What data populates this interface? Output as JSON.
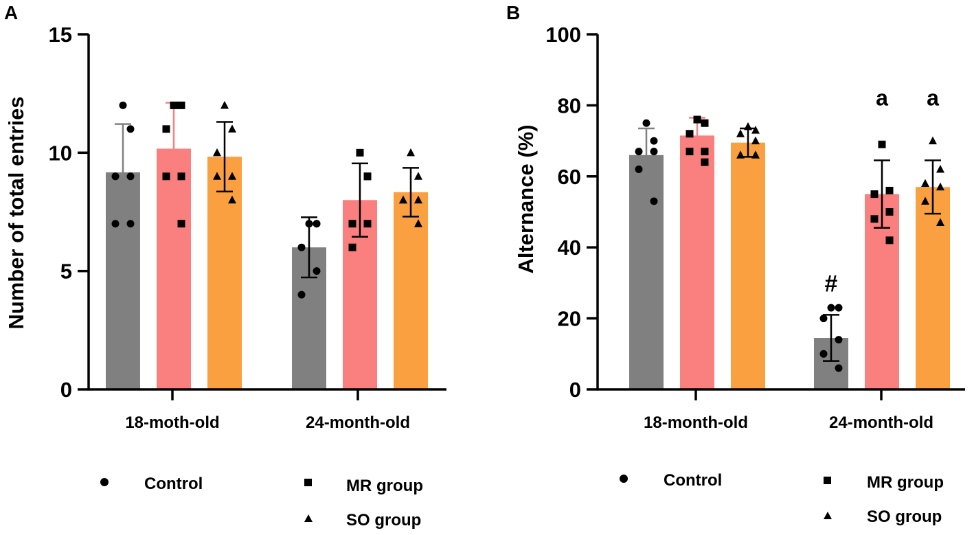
{
  "colors": {
    "control": "#808080",
    "mr": "#fa8080",
    "so": "#fba040",
    "axis": "#000000"
  },
  "chart_data": [
    {
      "panel": "A",
      "type": "bar",
      "ylabel": "Number of total entries",
      "ylim": [
        0,
        15
      ],
      "yticks": [
        0,
        5,
        10,
        15
      ],
      "categories": [
        "18-moth-old",
        "24-month-old"
      ],
      "series": [
        {
          "name": "Control",
          "marker": "circle",
          "color_key": "control",
          "means": [
            9.17,
            6.0
          ],
          "sd": [
            2.04,
            1.27
          ],
          "points": [
            [
              12,
              11,
              9,
              9,
              7,
              7
            ],
            [
              7,
              7,
              6,
              5,
              4,
              7
            ]
          ]
        },
        {
          "name": "MR group",
          "marker": "square",
          "color_key": "mr",
          "means": [
            10.17,
            8.0
          ],
          "sd": [
            1.94,
            1.55
          ],
          "points": [
            [
              12,
              12,
              11,
              9,
              9,
              7
            ],
            [
              10,
              9,
              7,
              7,
              6,
              9
            ]
          ]
        },
        {
          "name": "SO group",
          "marker": "triangle",
          "color_key": "so",
          "means": [
            9.83,
            8.33
          ],
          "sd": [
            1.47,
            1.03
          ],
          "points": [
            [
              12,
              11,
              10,
              9,
              9,
              8
            ],
            [
              10,
              9,
              8,
              8,
              8,
              7
            ]
          ]
        }
      ],
      "annotations": [],
      "legend": {
        "items": [
          "Control",
          "MR group",
          "SO group"
        ],
        "position": "bottom"
      }
    },
    {
      "panel": "B",
      "type": "bar",
      "ylabel": "Alternance (%)",
      "ylim": [
        0,
        100
      ],
      "yticks": [
        0,
        20,
        40,
        60,
        80,
        100
      ],
      "categories": [
        "18-month-old",
        "24-month-old"
      ],
      "series": [
        {
          "name": "Control",
          "marker": "circle",
          "color_key": "control",
          "means": [
            66,
            14.5
          ],
          "sd": [
            7.5,
            6.5
          ],
          "points": [
            [
              75,
              70,
              67,
              67,
              62,
              53
            ],
            [
              23,
              23,
              20,
              14,
              10,
              6
            ]
          ]
        },
        {
          "name": "MR group",
          "marker": "square",
          "color_key": "mr",
          "means": [
            71.5,
            55
          ],
          "sd": [
            5,
            9.5
          ],
          "points": [
            [
              76,
              75,
              72,
              67,
              67,
              64
            ],
            [
              69,
              56,
              55,
              50,
              48,
              42
            ]
          ]
        },
        {
          "name": "SO group",
          "marker": "triangle",
          "color_key": "so",
          "means": [
            69.5,
            57
          ],
          "sd": [
            4,
            7.5
          ],
          "points": [
            [
              74,
              73,
              72,
              70,
              66,
              66
            ],
            [
              70,
              62,
              58,
              57,
              53,
              47
            ]
          ]
        }
      ],
      "annotations": [
        {
          "text": "#",
          "category": 1,
          "series": 0,
          "y": 31
        },
        {
          "text": "a",
          "category": 1,
          "series": 1,
          "y": 80
        },
        {
          "text": "a",
          "category": 1,
          "series": 2,
          "y": 80
        }
      ],
      "legend": {
        "items": [
          "Control",
          "MR group",
          "SO group"
        ],
        "position": "bottom"
      }
    }
  ]
}
